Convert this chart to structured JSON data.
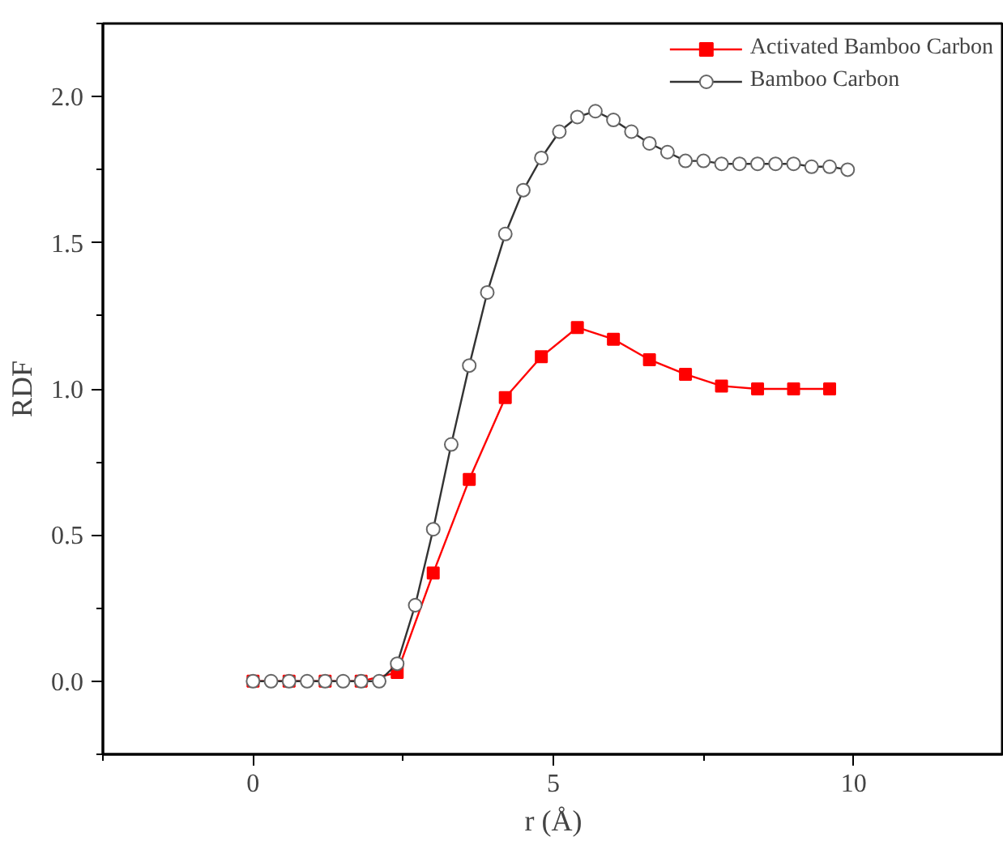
{
  "chart_data": {
    "type": "line",
    "xlabel": "r (Å)",
    "ylabel": "RDF",
    "xlim": [
      -2.5,
      12.5
    ],
    "ylim": [
      -0.25,
      2.25
    ],
    "xticks": [
      0,
      5,
      10
    ],
    "yticks": [
      {
        "value": 0,
        "label": "0.0"
      },
      {
        "value": 0.5,
        "label": "0.5"
      },
      {
        "value": 1,
        "label": "1.0"
      },
      {
        "value": 1.5,
        "label": "1.5"
      },
      {
        "value": 2,
        "label": "2.0"
      }
    ],
    "grid": false,
    "legend": "top right",
    "series": [
      {
        "name": "Activated Bamboo Carbon",
        "color": "#ff0000",
        "marker": "square",
        "x": [
          0,
          0.6,
          1.2,
          1.8,
          2.4,
          3.0,
          3.6,
          4.2,
          4.8,
          5.4,
          6.0,
          6.6,
          7.2,
          7.8,
          8.4,
          9.0,
          9.6
        ],
        "values": [
          0,
          0,
          0,
          0,
          0.03,
          0.37,
          0.69,
          0.97,
          1.11,
          1.21,
          1.17,
          1.1,
          1.05,
          1.01,
          1.0,
          1.0,
          1.0
        ]
      },
      {
        "name": "Bamboo Carbon",
        "color": "#333333",
        "marker": "circle",
        "x": [
          0,
          0.3,
          0.6,
          0.9,
          1.2,
          1.5,
          1.8,
          2.1,
          2.4,
          2.7,
          3.0,
          3.3,
          3.6,
          3.9,
          4.2,
          4.5,
          4.8,
          5.1,
          5.4,
          5.7,
          6.0,
          6.3,
          6.6,
          6.9,
          7.2,
          7.5,
          7.8,
          8.1,
          8.4,
          8.7,
          9.0,
          9.3,
          9.6,
          9.9
        ],
        "values": [
          0,
          0,
          0,
          0,
          0,
          0,
          0,
          0,
          0.06,
          0.26,
          0.52,
          0.81,
          1.08,
          1.33,
          1.53,
          1.68,
          1.79,
          1.88,
          1.93,
          1.95,
          1.92,
          1.88,
          1.84,
          1.81,
          1.78,
          1.78,
          1.77,
          1.77,
          1.77,
          1.77,
          1.77,
          1.76,
          1.76,
          1.75
        ]
      }
    ]
  }
}
